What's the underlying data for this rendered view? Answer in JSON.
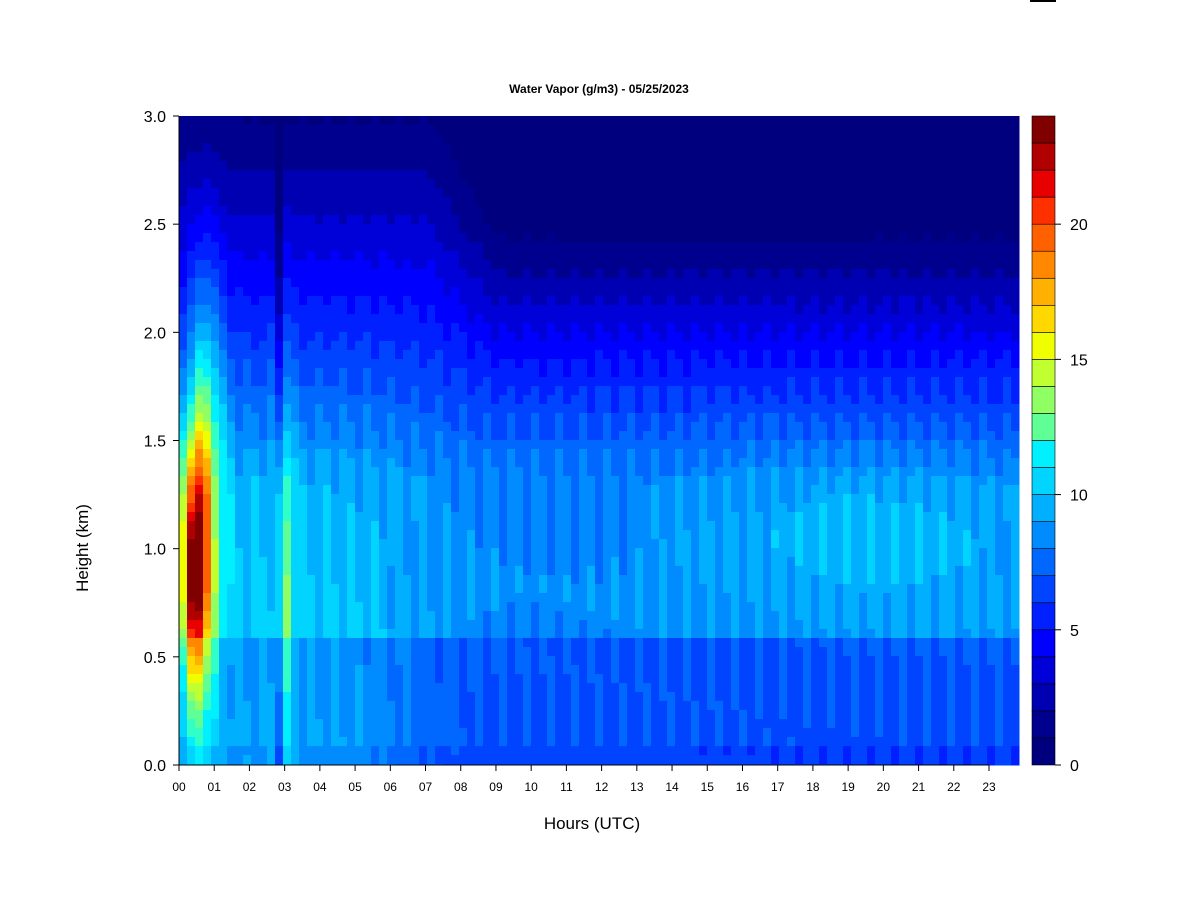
{
  "chart_data": {
    "type": "heatmap",
    "title": "Water Vapor (g/m3) - 05/25/2023",
    "xlabel": "Hours (UTC)",
    "ylabel": "Height (km)",
    "x_range": [
      0,
      24
    ],
    "y_range": [
      0.0,
      3.0
    ],
    "x_ticks": [
      "00",
      "01",
      "02",
      "03",
      "04",
      "05",
      "06",
      "07",
      "08",
      "09",
      "10",
      "11",
      "12",
      "13",
      "14",
      "15",
      "16",
      "17",
      "18",
      "19",
      "20",
      "21",
      "22",
      "23"
    ],
    "y_ticks": [
      "0.0",
      "0.5",
      "1.0",
      "1.5",
      "2.0",
      "2.5",
      "3.0"
    ],
    "colorbar": {
      "range": [
        0,
        24
      ],
      "levels": 24,
      "tick_values": [
        0,
        5,
        10,
        15,
        20
      ],
      "tick_labels": [
        "0",
        "5",
        "10",
        "15",
        "20"
      ],
      "colors": [
        "#00007f",
        "#00008f",
        "#0000b3",
        "#0000d8",
        "#0000ff",
        "#0020ff",
        "#0044ff",
        "#0068ff",
        "#008cff",
        "#00b0ff",
        "#00d4ff",
        "#00f0ff",
        "#30ffc8",
        "#60ff96",
        "#90ff64",
        "#c0ff30",
        "#f0ff00",
        "#ffd800",
        "#ffb000",
        "#ff8800",
        "#ff6000",
        "#ff3000",
        "#e80000",
        "#b00000",
        "#800000"
      ]
    },
    "grid": false
  }
}
